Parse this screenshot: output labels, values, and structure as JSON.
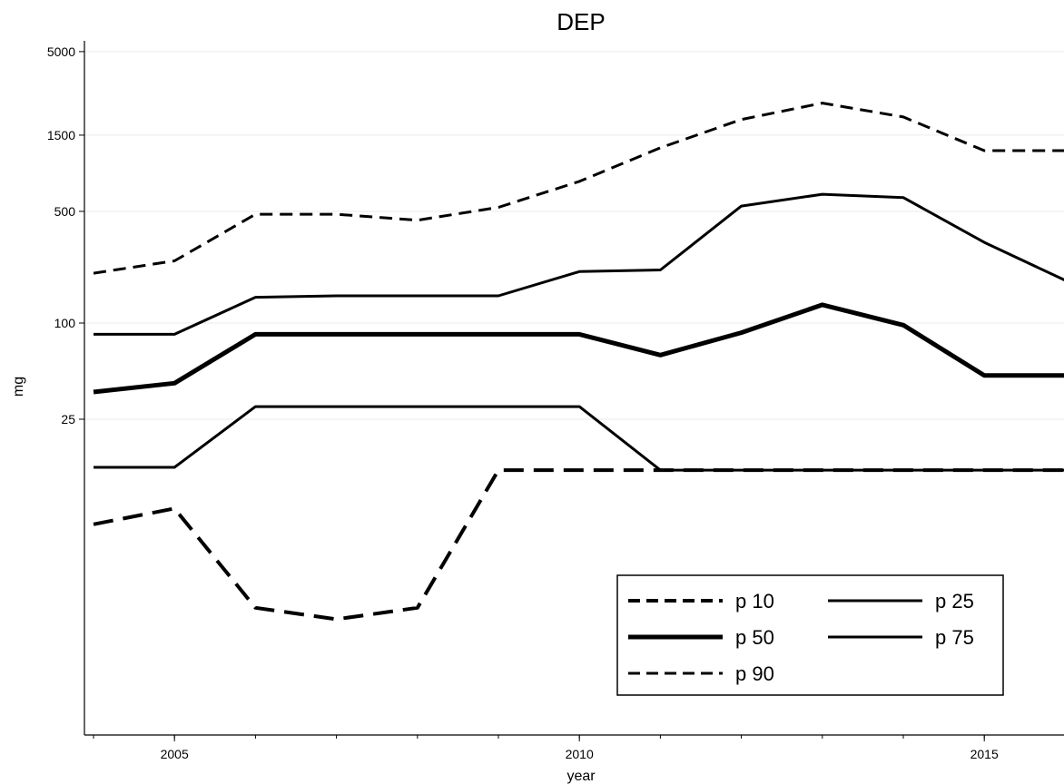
{
  "chart_data": {
    "type": "line",
    "title": "DEP",
    "xlabel": "year",
    "ylabel": "mg",
    "x": [
      2004,
      2005,
      2006,
      2007,
      2008,
      2009,
      2010,
      2011,
      2012,
      2013,
      2014,
      2015,
      2016
    ],
    "xticks": [
      2005,
      2010,
      2015
    ],
    "yscale": "log",
    "yticks": [
      25,
      100,
      500,
      1500,
      5000
    ],
    "grid": "horizontal",
    "legend_position": "bottom-right",
    "series": [
      {
        "name": "p 10",
        "style": "dashed",
        "width": 4,
        "values": [
          5.5,
          6.9,
          1.65,
          1.4,
          1.65,
          12,
          12,
          12,
          12,
          12,
          12,
          12,
          12
        ]
      },
      {
        "name": "p 25",
        "style": "solid",
        "width": 3,
        "values": [
          12.5,
          12.5,
          30,
          30,
          30,
          30,
          30,
          12,
          12,
          12,
          12,
          12,
          12
        ]
      },
      {
        "name": "p 50",
        "style": "solid",
        "width": 5,
        "values": [
          37,
          42,
          85,
          85,
          85,
          85,
          85,
          63,
          87,
          130,
          97,
          47,
          47
        ]
      },
      {
        "name": "p 75",
        "style": "solid",
        "width": 3,
        "values": [
          85,
          85,
          145,
          148,
          148,
          148,
          210,
          215,
          540,
          640,
          610,
          320,
          185
        ]
      },
      {
        "name": "p 90",
        "style": "dashed",
        "width": 3,
        "values": [
          205,
          245,
          480,
          480,
          440,
          530,
          770,
          1250,
          1880,
          2380,
          1950,
          1200,
          1200
        ]
      }
    ]
  }
}
